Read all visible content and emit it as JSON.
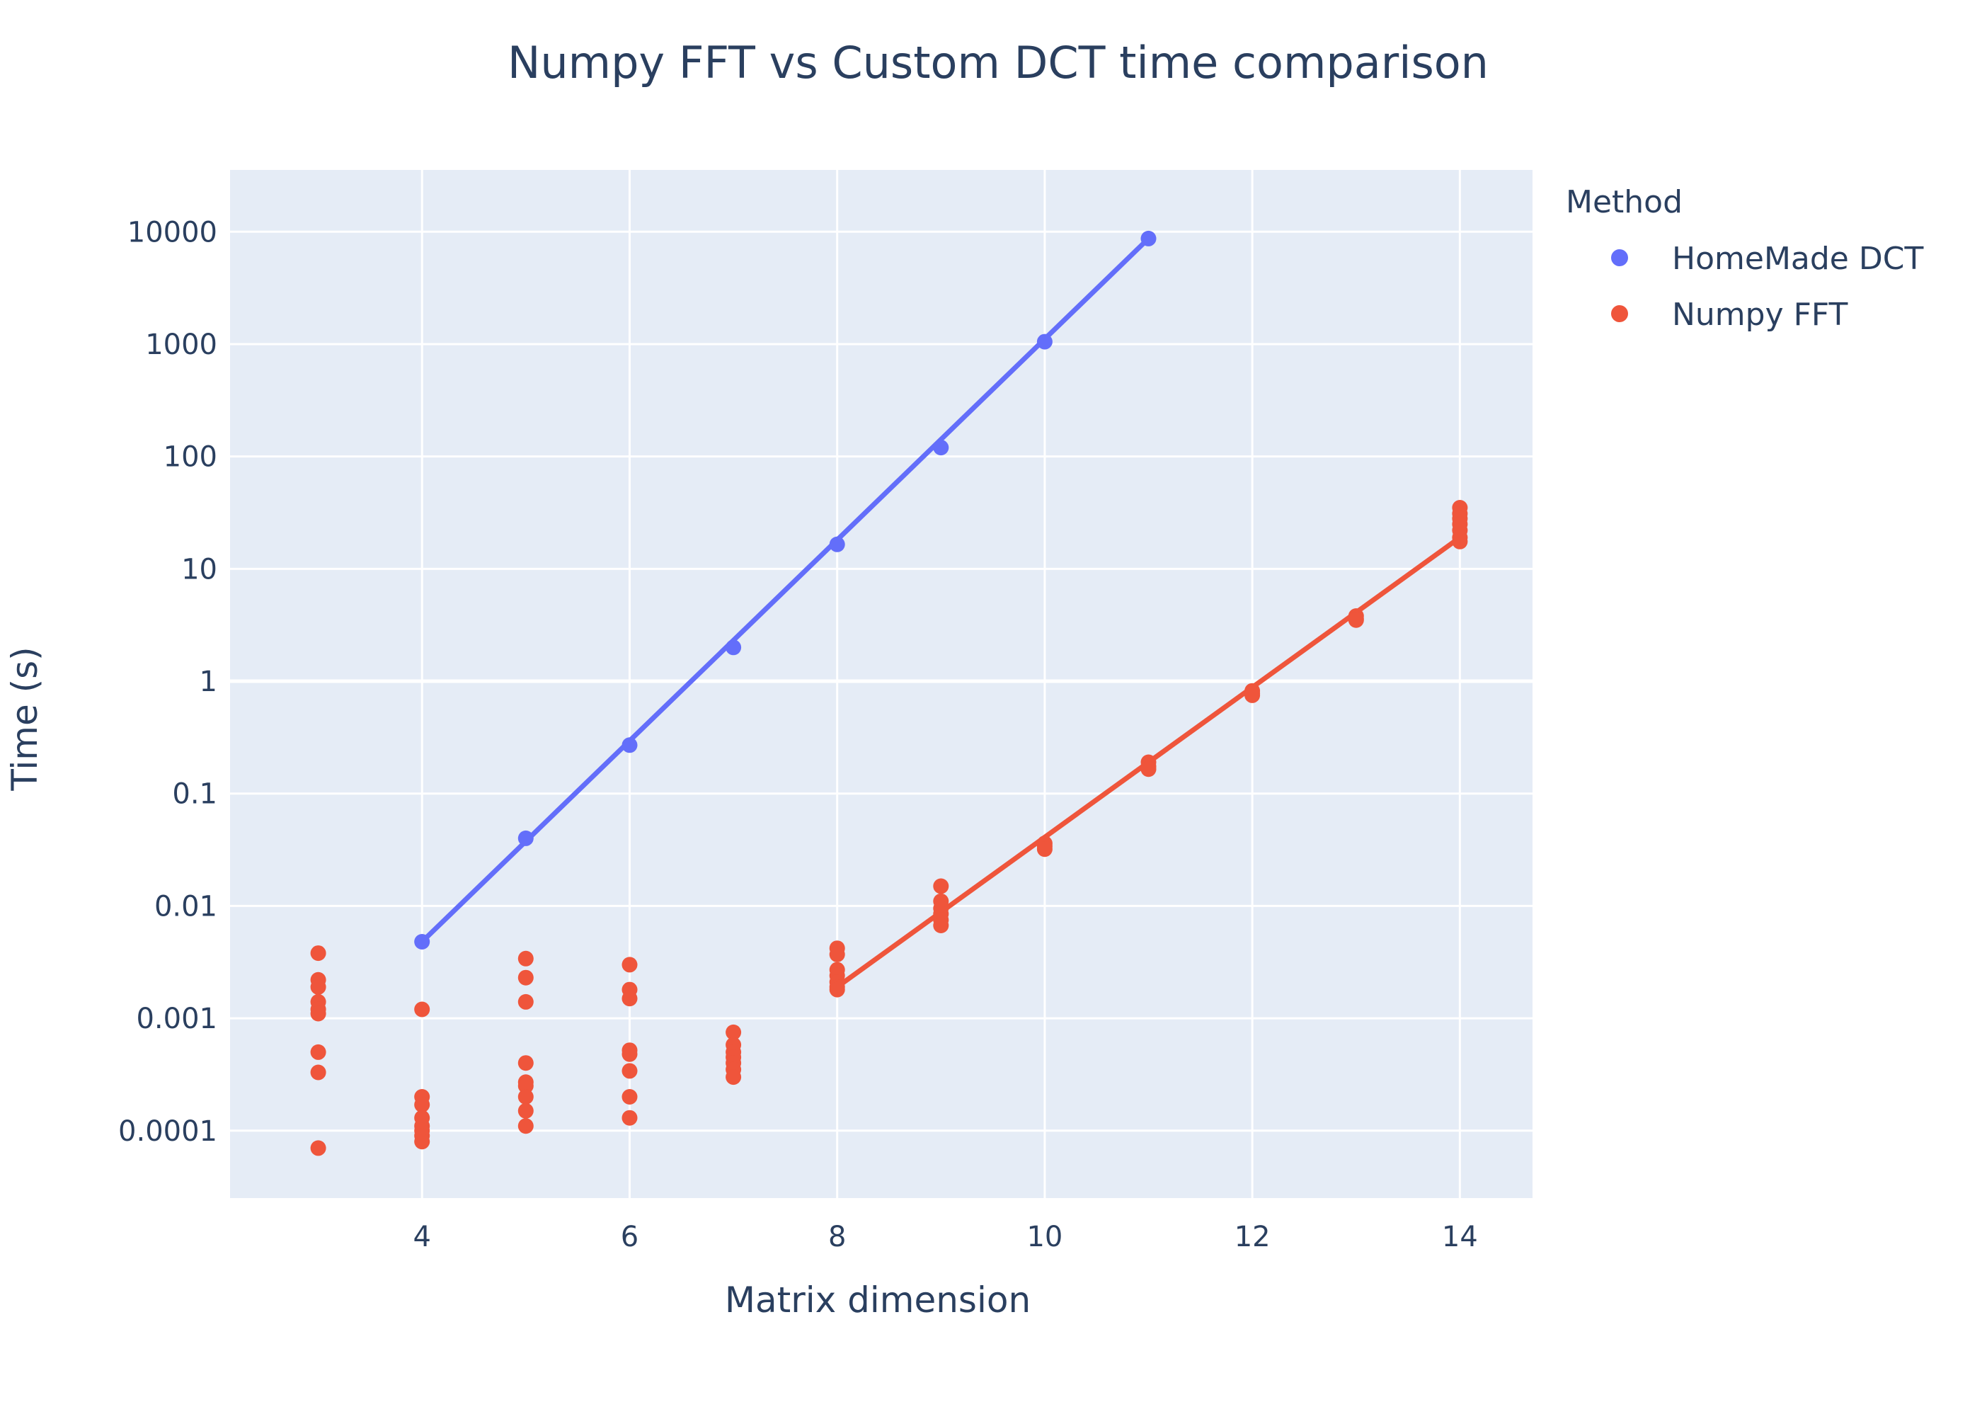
{
  "chart_data": {
    "type": "scatter",
    "title": "Numpy FFT vs Custom DCT time comparison",
    "xlabel": "Matrix dimension",
    "ylabel": "Time (s)",
    "xlim": [
      2.15,
      14.7
    ],
    "ylim_log10": [
      -4.6,
      4.55
    ],
    "y_scale": "log",
    "grid": true,
    "x_ticks": [
      {
        "value": 4,
        "label": "4"
      },
      {
        "value": 6,
        "label": "6"
      },
      {
        "value": 8,
        "label": "8"
      },
      {
        "value": 10,
        "label": "10"
      },
      {
        "value": 12,
        "label": "12"
      },
      {
        "value": 14,
        "label": "14"
      }
    ],
    "y_ticks": [
      {
        "value": 0.0001,
        "label": "0.0001"
      },
      {
        "value": 0.001,
        "label": "0.001"
      },
      {
        "value": 0.01,
        "label": "0.01"
      },
      {
        "value": 0.1,
        "label": "0.1"
      },
      {
        "value": 1,
        "label": "1"
      },
      {
        "value": 10,
        "label": "10"
      },
      {
        "value": 100,
        "label": "100"
      },
      {
        "value": 1000,
        "label": "1000"
      },
      {
        "value": 10000,
        "label": "10000"
      }
    ],
    "legend": {
      "title": "Method",
      "position": "top-right"
    },
    "series": [
      {
        "name": "HomeMade DCT",
        "color": "#636efa",
        "points": [
          [
            4,
            0.0048
          ],
          [
            5,
            0.04
          ],
          [
            6,
            0.27
          ],
          [
            7,
            2.0
          ],
          [
            8,
            16.5
          ],
          [
            9,
            120
          ],
          [
            10,
            1050
          ],
          [
            11,
            8700
          ]
        ],
        "fit": [
          [
            4,
            0.0048
          ],
          [
            11,
            8700
          ]
        ]
      },
      {
        "name": "Numpy FFT",
        "color": "#ef553b",
        "points": [
          [
            3,
            0.0038
          ],
          [
            3,
            0.0022
          ],
          [
            3,
            0.0019
          ],
          [
            3,
            0.0014
          ],
          [
            3,
            0.0012
          ],
          [
            3,
            0.0011
          ],
          [
            3,
            0.0005
          ],
          [
            3,
            0.00033
          ],
          [
            3,
            7e-05
          ],
          [
            4,
            0.0012
          ],
          [
            4,
            0.0002
          ],
          [
            4,
            0.00017
          ],
          [
            4,
            0.00013
          ],
          [
            4,
            0.00011
          ],
          [
            4,
            0.0001
          ],
          [
            4,
            9e-05
          ],
          [
            4,
            8e-05
          ],
          [
            5,
            0.0034
          ],
          [
            5,
            0.0023
          ],
          [
            5,
            0.0014
          ],
          [
            5,
            0.0004
          ],
          [
            5,
            0.00027
          ],
          [
            5,
            0.00025
          ],
          [
            5,
            0.0002
          ],
          [
            5,
            0.00015
          ],
          [
            5,
            0.00011
          ],
          [
            6,
            0.003
          ],
          [
            6,
            0.0018
          ],
          [
            6,
            0.0015
          ],
          [
            6,
            0.00052
          ],
          [
            6,
            0.00048
          ],
          [
            6,
            0.00034
          ],
          [
            6,
            0.0002
          ],
          [
            6,
            0.00013
          ],
          [
            7,
            0.00075
          ],
          [
            7,
            0.00058
          ],
          [
            7,
            0.0005
          ],
          [
            7,
            0.00045
          ],
          [
            7,
            0.0004
          ],
          [
            7,
            0.00035
          ],
          [
            7,
            0.0003
          ],
          [
            8,
            0.0042
          ],
          [
            8,
            0.0037
          ],
          [
            8,
            0.0027
          ],
          [
            8,
            0.0024
          ],
          [
            8,
            0.0021
          ],
          [
            8,
            0.0019
          ],
          [
            8,
            0.0018
          ],
          [
            9,
            0.015
          ],
          [
            9,
            0.011
          ],
          [
            9,
            0.0095
          ],
          [
            9,
            0.0085
          ],
          [
            9,
            0.0075
          ],
          [
            9,
            0.0067
          ],
          [
            10,
            0.036
          ],
          [
            10,
            0.034
          ],
          [
            10,
            0.032
          ],
          [
            11,
            0.19
          ],
          [
            11,
            0.175
          ],
          [
            11,
            0.165
          ],
          [
            12,
            0.82
          ],
          [
            12,
            0.78
          ],
          [
            12,
            0.75
          ],
          [
            13,
            3.8
          ],
          [
            13,
            3.6
          ],
          [
            13,
            3.5
          ],
          [
            14,
            35
          ],
          [
            14,
            31
          ],
          [
            14,
            28
          ],
          [
            14,
            25
          ],
          [
            14,
            22
          ],
          [
            14,
            19
          ],
          [
            14,
            17.5
          ]
        ],
        "fit": [
          [
            8,
            0.0019
          ],
          [
            14,
            19
          ]
        ]
      }
    ]
  }
}
